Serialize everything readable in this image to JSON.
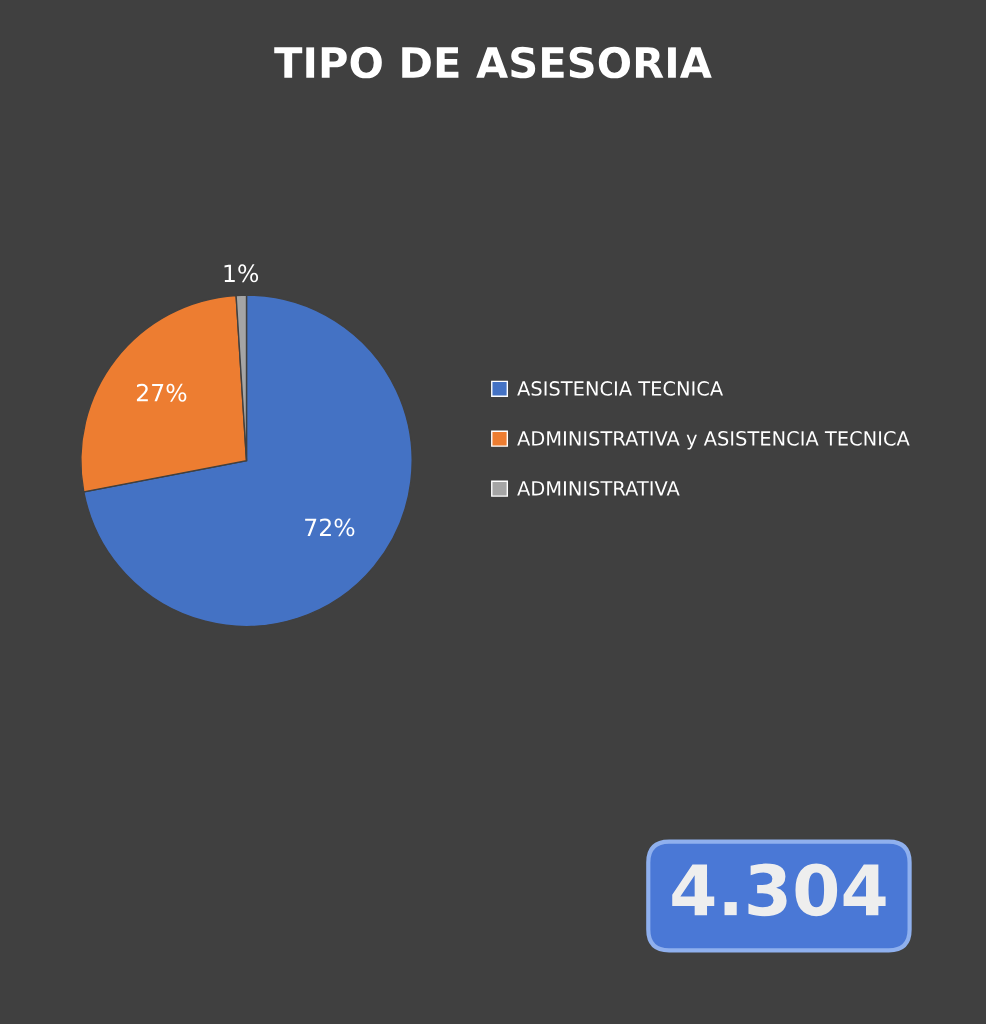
{
  "chart_data": {
    "type": "pie",
    "title": "TIPO DE ASESORIA",
    "categories": [
      "ASISTENCIA TECNICA",
      "ADMINISTRATIVA y ASISTENCIA TECNICA",
      "ADMINISTRATIVA"
    ],
    "values": [
      72,
      27,
      1
    ],
    "colors": [
      "#4472c4",
      "#ed7d31",
      "#a5a5a5"
    ],
    "value_labels": [
      "72%",
      "27%",
      "1%"
    ],
    "legend": "right",
    "annotations": [
      "4.304"
    ]
  }
}
